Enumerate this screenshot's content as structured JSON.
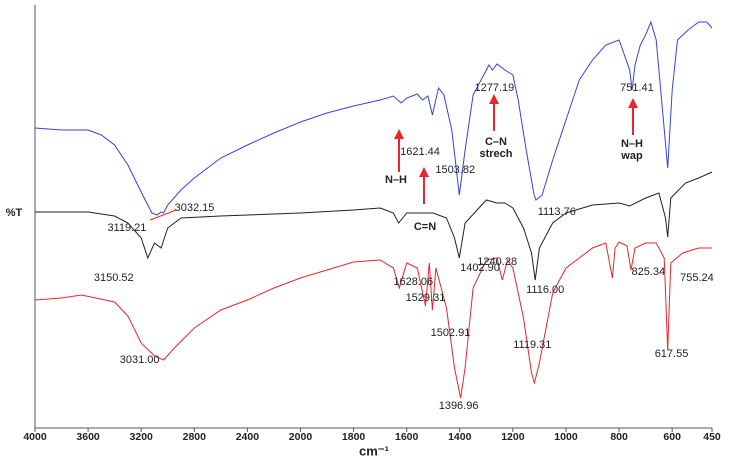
{
  "chart_data": {
    "type": "line",
    "xlabel": "cm⁻¹",
    "ylabel": "%T",
    "xlim": [
      4000,
      450
    ],
    "x_break": 2000,
    "x_break_zoom": 2,
    "ylim": [
      0,
      420
    ],
    "xticks": [
      4000,
      3600,
      3200,
      2800,
      2400,
      2000,
      1800,
      1600,
      1400,
      1200,
      1000,
      800,
      600,
      450
    ],
    "series": [
      {
        "color": "#3344dd",
        "x": [
          4000,
          3800,
          3600,
          3500,
          3400,
          3300,
          3200,
          3150,
          3119,
          3080,
          3050,
          3032,
          3000,
          2900,
          2800,
          2600,
          2400,
          2200,
          2000,
          1900,
          1800,
          1700,
          1650,
          1621,
          1600,
          1560,
          1540,
          1520,
          1503,
          1480,
          1460,
          1430,
          1402,
          1380,
          1350,
          1300,
          1290,
          1277,
          1260,
          1230,
          1200,
          1180,
          1150,
          1120,
          1113,
          1090,
          1050,
          1000,
          950,
          900,
          850,
          800,
          760,
          751,
          740,
          720,
          700,
          680,
          660,
          640,
          617,
          600,
          580,
          540,
          500,
          470,
          450
        ],
        "values": [
          300,
          298,
          298,
          293,
          283,
          263,
          236,
          223,
          215,
          213,
          216,
          215,
          223,
          238,
          250,
          270,
          283,
          295,
          306,
          315,
          322,
          328,
          332,
          325,
          330,
          334,
          328,
          332,
          313,
          340,
          333,
          298,
          233,
          278,
          333,
          358,
          363,
          358,
          364,
          358,
          353,
          328,
          278,
          233,
          228,
          233,
          268,
          308,
          348,
          368,
          383,
          388,
          358,
          338,
          363,
          383,
          393,
          406,
          388,
          328,
          260,
          338,
          388,
          398,
          406,
          406,
          400
        ]
      },
      {
        "color": "#222222",
        "x": [
          4000,
          3600,
          3400,
          3300,
          3200,
          3150,
          3100,
          3050,
          3000,
          2900,
          2600,
          2200,
          2000,
          1800,
          1700,
          1650,
          1630,
          1600,
          1500,
          1450,
          1420,
          1402,
          1380,
          1300,
          1260,
          1230,
          1200,
          1160,
          1130,
          1116,
          1100,
          1050,
          1000,
          900,
          800,
          760,
          700,
          650,
          625,
          617,
          605,
          550,
          500,
          450
        ],
        "values": [
          216,
          216,
          212,
          205,
          190,
          170,
          185,
          180,
          200,
          210,
          212,
          214,
          215,
          218,
          220,
          215,
          205,
          215,
          215,
          210,
          190,
          170,
          205,
          228,
          225,
          225,
          220,
          200,
          175,
          148,
          180,
          205,
          215,
          223,
          225,
          222,
          230,
          235,
          210,
          191,
          230,
          245,
          250,
          256
        ]
      },
      {
        "color": "#e8262b",
        "x": [
          4000,
          3800,
          3650,
          3400,
          3300,
          3200,
          3100,
          3031,
          2950,
          2800,
          2600,
          2400,
          2200,
          2000,
          1900,
          1800,
          1700,
          1650,
          1628,
          1600,
          1560,
          1529,
          1515,
          1503,
          1490,
          1450,
          1420,
          1397,
          1380,
          1350,
          1300,
          1260,
          1240,
          1220,
          1200,
          1160,
          1130,
          1119,
          1100,
          1050,
          1000,
          950,
          900,
          850,
          825,
          815,
          800,
          770,
          755,
          740,
          700,
          660,
          630,
          617,
          605,
          560,
          500,
          450
        ],
        "values": [
          128,
          130,
          133,
          126,
          112,
          85,
          72,
          68,
          80,
          100,
          118,
          128,
          140,
          150,
          158,
          166,
          168,
          160,
          140,
          165,
          160,
          122,
          165,
          118,
          160,
          120,
          60,
          30,
          60,
          140,
          168,
          170,
          148,
          168,
          160,
          110,
          55,
          45,
          65,
          135,
          160,
          170,
          180,
          185,
          150,
          180,
          186,
          182,
          158,
          180,
          185,
          185,
          170,
          78,
          165,
          175,
          180,
          180
        ]
      }
    ],
    "peak_labels": [
      {
        "value": 3119.21,
        "label": "3119.21"
      },
      {
        "value": 3032.15,
        "label": "3032.15"
      },
      {
        "value": 1621.44,
        "label": "1621.44"
      },
      {
        "value": 1503.82,
        "label": "1503.82"
      },
      {
        "value": 1277.19,
        "label": "1277.19"
      },
      {
        "value": 751.41,
        "label": "751.41"
      },
      {
        "value": 3150.52,
        "label": "3150.52"
      },
      {
        "value": 1402.9,
        "label": "1402.90"
      },
      {
        "value": 1113.76,
        "label": "1113.76"
      },
      {
        "value": 1116.0,
        "label": "1116.00"
      },
      {
        "value": 1628.06,
        "label": "1628.06"
      },
      {
        "value": 1529.31,
        "label": "1529.31"
      },
      {
        "value": 1502.91,
        "label": "1502.91"
      },
      {
        "value": 1240.28,
        "label": "1240.28"
      },
      {
        "value": 825.34,
        "label": "825.34"
      },
      {
        "value": 755.24,
        "label": "755.24"
      },
      {
        "value": 1119.31,
        "label": "1119.31"
      },
      {
        "value": 3031.0,
        "label": "3031.00"
      },
      {
        "value": 1396.96,
        "label": "1396.96"
      },
      {
        "value": 617.55,
        "label": "617.55"
      }
    ],
    "groups": [
      {
        "lines": [
          "N–H"
        ]
      },
      {
        "lines": [
          "C=N"
        ]
      },
      {
        "lines": [
          "C–N",
          "strech"
        ]
      },
      {
        "lines": [
          "N–H",
          "wap"
        ]
      }
    ]
  }
}
